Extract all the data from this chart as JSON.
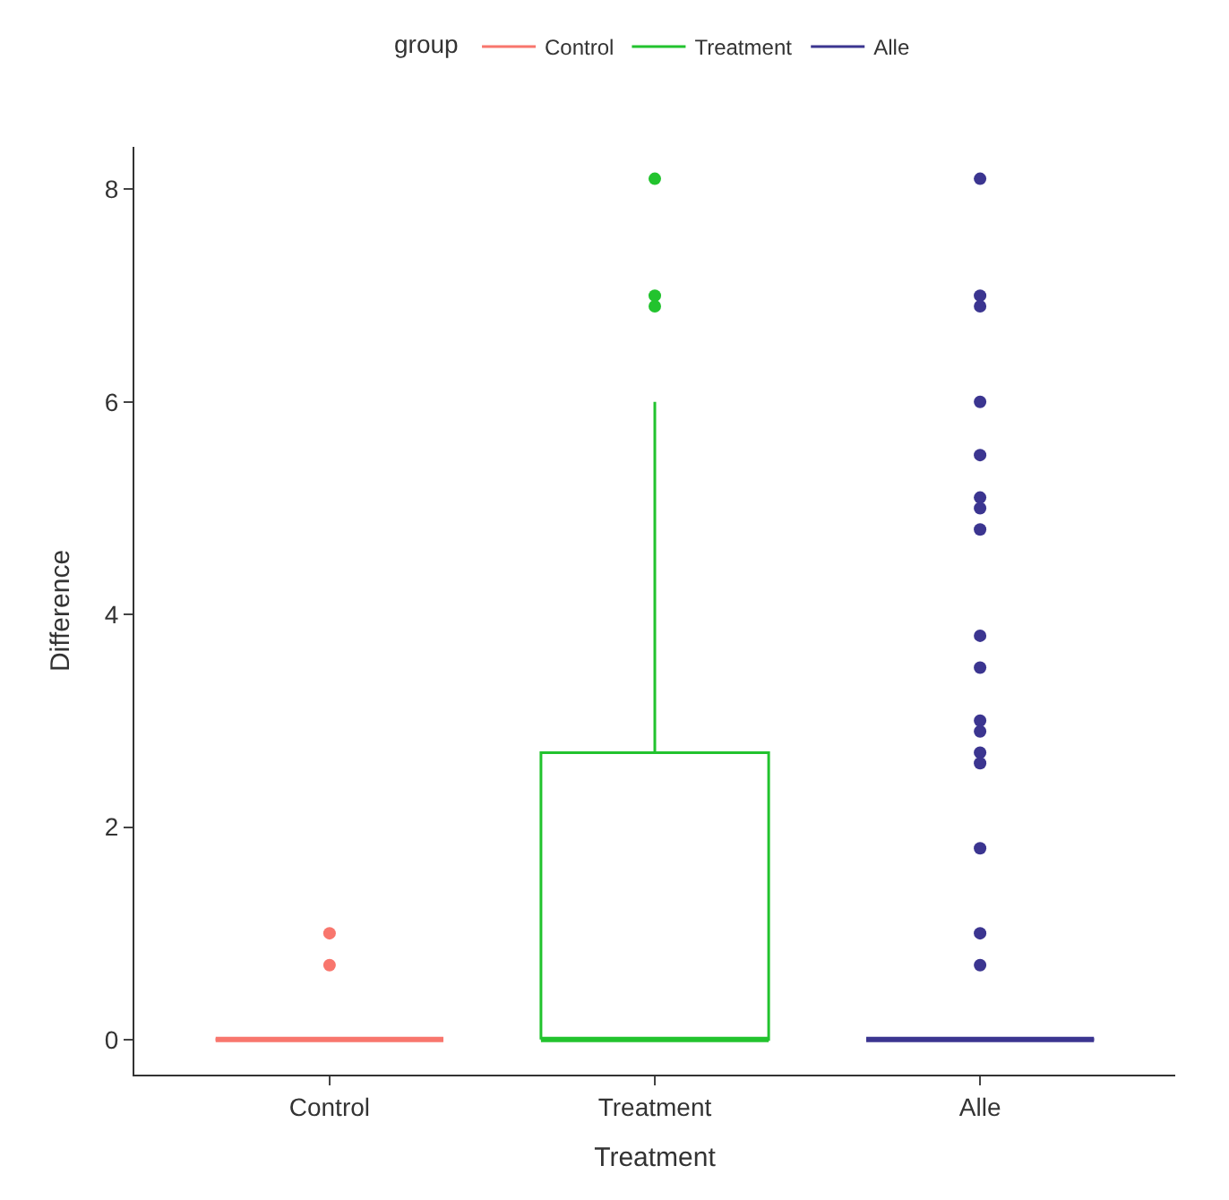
{
  "chart_data": {
    "type": "box",
    "xlabel": "Treatment",
    "ylabel": "Difference",
    "legend_title": "group",
    "categories": [
      "Control",
      "Treatment",
      "Alle"
    ],
    "series": [
      {
        "name": "Control",
        "color": "#f8766d",
        "boxes": [
          {
            "low": 0,
            "q1": 0,
            "median": 0,
            "q3": 0,
            "high": 0,
            "outliers": [
              1.0,
              0.7
            ]
          },
          null,
          null
        ]
      },
      {
        "name": "Treatment",
        "color": "#22c32e",
        "boxes": [
          null,
          {
            "low": 0,
            "q1": 0,
            "median": 0,
            "q3": 2.7,
            "high": 6.0,
            "outliers": [
              8.1,
              7.0,
              6.9
            ]
          },
          null
        ]
      },
      {
        "name": "Alle",
        "color": "#3b3590",
        "boxes": [
          null,
          null,
          {
            "low": 0,
            "q1": 0,
            "median": 0,
            "q3": 0,
            "high": 0,
            "outliers": [
              8.1,
              7.0,
              6.9,
              6.0,
              5.5,
              5.1,
              5.0,
              4.8,
              3.8,
              3.5,
              3.0,
              2.9,
              2.7,
              2.6,
              1.8,
              1.0,
              0.7
            ]
          }
        ]
      }
    ],
    "ylim": [
      -0.33,
      8.4
    ],
    "yticks": [
      0,
      2,
      4,
      6,
      8
    ],
    "legend": "top"
  }
}
